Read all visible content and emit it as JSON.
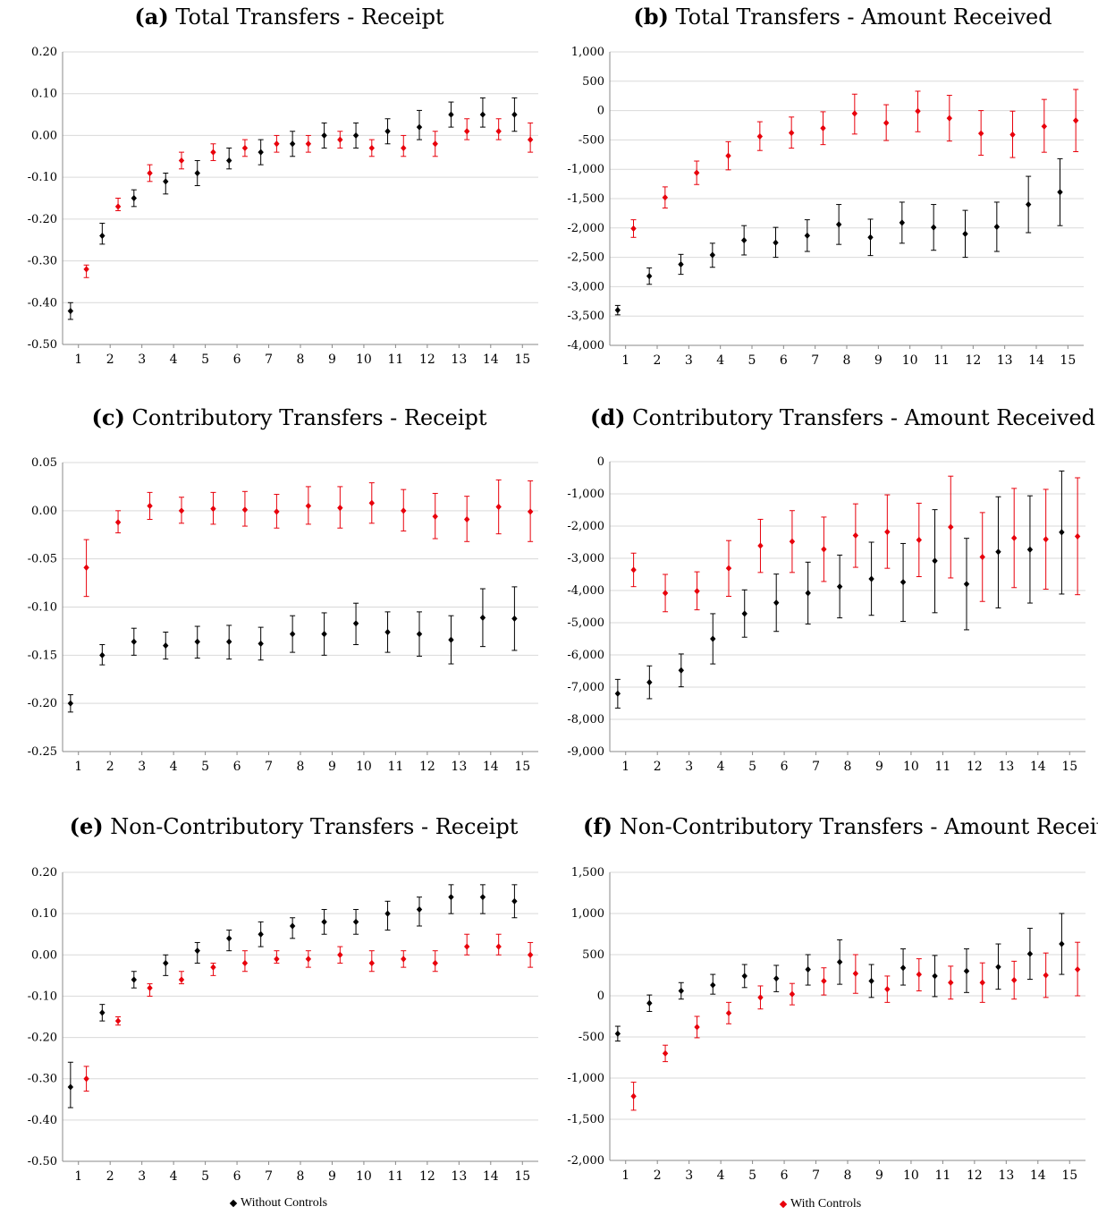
{
  "colors": {
    "without": "#000000",
    "with": "#e8000b",
    "grid": "#d9d9d9",
    "axis": "#888888"
  },
  "legend": {
    "without_label": "Without Controls",
    "with_label": "With Controls"
  },
  "chart_data": [
    {
      "id": "a",
      "type": "scatter",
      "letter": "(a)",
      "title": "Total Transfers - Receipt",
      "ylim": [
        -0.5,
        0.2
      ],
      "yticks": [
        0.2,
        0.1,
        0.0,
        -0.1,
        -0.2,
        -0.3,
        -0.4,
        -0.5
      ],
      "ytick_labels": [
        "0.20",
        "0.10",
        "0.00",
        "-0.10",
        "-0.20",
        "-0.30",
        "-0.40",
        "-0.50"
      ],
      "x": [
        1,
        2,
        3,
        4,
        5,
        6,
        7,
        8,
        9,
        10,
        11,
        12,
        13,
        14,
        15
      ],
      "series": [
        {
          "name": "Without Controls",
          "y": [
            -0.42,
            -0.24,
            -0.15,
            -0.11,
            -0.09,
            -0.06,
            -0.04,
            -0.02,
            0.0,
            0.0,
            0.01,
            0.02,
            0.05,
            0.05,
            0.05
          ],
          "lo": [
            -0.44,
            -0.26,
            -0.17,
            -0.14,
            -0.12,
            -0.08,
            -0.07,
            -0.05,
            -0.03,
            -0.03,
            -0.02,
            -0.01,
            0.02,
            0.02,
            0.01
          ],
          "hi": [
            -0.4,
            -0.21,
            -0.13,
            -0.09,
            -0.06,
            -0.03,
            -0.01,
            0.01,
            0.03,
            0.03,
            0.04,
            0.06,
            0.08,
            0.09,
            0.09
          ]
        },
        {
          "name": "With Controls",
          "y": [
            -0.32,
            -0.17,
            -0.09,
            -0.06,
            -0.04,
            -0.03,
            -0.02,
            -0.02,
            -0.01,
            -0.03,
            -0.03,
            -0.02,
            0.01,
            0.01,
            -0.01
          ],
          "lo": [
            -0.34,
            -0.18,
            -0.11,
            -0.08,
            -0.06,
            -0.05,
            -0.04,
            -0.04,
            -0.03,
            -0.05,
            -0.05,
            -0.05,
            -0.01,
            -0.01,
            -0.04
          ],
          "hi": [
            -0.31,
            -0.15,
            -0.07,
            -0.04,
            -0.02,
            -0.01,
            0.0,
            0.0,
            0.01,
            -0.01,
            0.0,
            0.01,
            0.04,
            0.04,
            0.03
          ]
        }
      ]
    },
    {
      "id": "b",
      "type": "scatter",
      "letter": "(b)",
      "title": "Total Transfers - Amount Received",
      "ylim": [
        -4000,
        1000
      ],
      "yticks": [
        1000,
        500,
        0,
        -500,
        -1000,
        -1500,
        -2000,
        -2500,
        -3000,
        -3500,
        -4000
      ],
      "ytick_labels": [
        "1,000",
        "500",
        "0",
        "-500",
        "-1,000",
        "-1,500",
        "-2,000",
        "-2,500",
        "-3,000",
        "-3,500",
        "-4,000"
      ],
      "x": [
        1,
        2,
        3,
        4,
        5,
        6,
        7,
        8,
        9,
        10,
        11,
        12,
        13,
        14,
        15
      ],
      "series": [
        {
          "name": "Without Controls",
          "y": [
            -3400,
            -2820,
            -2620,
            -2460,
            -2210,
            -2250,
            -2130,
            -1940,
            -2160,
            -1910,
            -1990,
            -2100,
            -1980,
            -1600,
            -1390
          ],
          "lo": [
            -3480,
            -2960,
            -2790,
            -2670,
            -2460,
            -2500,
            -2400,
            -2280,
            -2470,
            -2260,
            -2380,
            -2500,
            -2400,
            -2080,
            -1960
          ],
          "hi": [
            -3320,
            -2680,
            -2450,
            -2260,
            -1960,
            -1990,
            -1860,
            -1600,
            -1850,
            -1560,
            -1600,
            -1700,
            -1560,
            -1120,
            -820
          ]
        },
        {
          "name": "With Controls",
          "y": [
            -2010,
            -1480,
            -1060,
            -770,
            -440,
            -380,
            -300,
            -50,
            -210,
            -10,
            -130,
            -390,
            -410,
            -270,
            -170
          ],
          "lo": [
            -2160,
            -1660,
            -1260,
            -1010,
            -680,
            -640,
            -580,
            -400,
            -510,
            -360,
            -520,
            -760,
            -800,
            -710,
            -700
          ],
          "hi": [
            -1860,
            -1300,
            -860,
            -530,
            -190,
            -110,
            -20,
            280,
            100,
            330,
            260,
            0,
            -10,
            190,
            360
          ]
        }
      ]
    },
    {
      "id": "c",
      "type": "scatter",
      "letter": "(c)",
      "title": "Contributory Transfers - Receipt",
      "ylim": [
        -0.25,
        0.05
      ],
      "yticks": [
        0.05,
        0.0,
        -0.05,
        -0.1,
        -0.15,
        -0.2,
        -0.25
      ],
      "ytick_labels": [
        "0.05",
        "0.00",
        "-0.05",
        "-0.10",
        "-0.15",
        "-0.20",
        "-0.25"
      ],
      "x": [
        1,
        2,
        3,
        4,
        5,
        6,
        7,
        8,
        9,
        10,
        11,
        12,
        13,
        14,
        15
      ],
      "series": [
        {
          "name": "Without Controls",
          "y": [
            -0.2,
            -0.15,
            -0.136,
            -0.14,
            -0.136,
            -0.136,
            -0.138,
            -0.128,
            -0.128,
            -0.117,
            -0.126,
            -0.128,
            -0.134,
            -0.111,
            -0.112
          ],
          "lo": [
            -0.209,
            -0.16,
            -0.15,
            -0.154,
            -0.153,
            -0.154,
            -0.155,
            -0.147,
            -0.15,
            -0.139,
            -0.147,
            -0.151,
            -0.159,
            -0.141,
            -0.145
          ],
          "hi": [
            -0.191,
            -0.139,
            -0.122,
            -0.126,
            -0.12,
            -0.119,
            -0.121,
            -0.109,
            -0.106,
            -0.096,
            -0.105,
            -0.105,
            -0.109,
            -0.081,
            -0.079
          ]
        },
        {
          "name": "With Controls",
          "y": [
            -0.059,
            -0.012,
            0.005,
            0.0,
            0.002,
            0.001,
            -0.001,
            0.005,
            0.003,
            0.008,
            0.0,
            -0.006,
            -0.009,
            0.004,
            -0.001
          ],
          "lo": [
            -0.089,
            -0.023,
            -0.009,
            -0.013,
            -0.014,
            -0.016,
            -0.018,
            -0.014,
            -0.018,
            -0.013,
            -0.021,
            -0.029,
            -0.032,
            -0.024,
            -0.032
          ],
          "hi": [
            -0.03,
            0.0,
            0.019,
            0.014,
            0.019,
            0.02,
            0.017,
            0.025,
            0.025,
            0.029,
            0.022,
            0.018,
            0.015,
            0.032,
            0.031
          ]
        }
      ]
    },
    {
      "id": "d",
      "type": "scatter",
      "letter": "(d)",
      "title": "Contributory Transfers - Amount Received",
      "ylim": [
        -9000,
        0
      ],
      "yticks": [
        0,
        -1000,
        -2000,
        -3000,
        -4000,
        -5000,
        -6000,
        -7000,
        -8000,
        -9000
      ],
      "ytick_labels": [
        "0",
        "-1,000",
        "-2,000",
        "-3,000",
        "-4,000",
        "-5,000",
        "-6,000",
        "-7,000",
        "-8,000",
        "-9,000"
      ],
      "x": [
        1,
        2,
        3,
        4,
        5,
        6,
        7,
        8,
        9,
        10,
        11,
        12,
        13,
        14,
        15
      ],
      "series": [
        {
          "name": "Without Controls",
          "y": [
            -7200,
            -6850,
            -6480,
            -5500,
            -4720,
            -4380,
            -4080,
            -3880,
            -3640,
            -3740,
            -3080,
            -3800,
            -2800,
            -2730,
            -2190
          ],
          "lo": [
            -7650,
            -7360,
            -6990,
            -6280,
            -5450,
            -5270,
            -5040,
            -4850,
            -4770,
            -4960,
            -4690,
            -5220,
            -4540,
            -4390,
            -4110
          ],
          "hi": [
            -6760,
            -6340,
            -5970,
            -4720,
            -3980,
            -3490,
            -3120,
            -2900,
            -2500,
            -2540,
            -1490,
            -2380,
            -1090,
            -1060,
            -290
          ]
        },
        {
          "name": "With Controls",
          "y": [
            -3360,
            -4080,
            -4020,
            -3310,
            -2610,
            -2480,
            -2720,
            -2290,
            -2180,
            -2430,
            -2030,
            -2960,
            -2370,
            -2410,
            -2320
          ],
          "lo": [
            -3880,
            -4660,
            -4600,
            -4180,
            -3440,
            -3440,
            -3720,
            -3280,
            -3310,
            -3570,
            -3610,
            -4340,
            -3910,
            -3960,
            -4130
          ],
          "hi": [
            -2840,
            -3500,
            -3420,
            -2450,
            -1790,
            -1520,
            -1720,
            -1310,
            -1030,
            -1290,
            -450,
            -1580,
            -830,
            -860,
            -500
          ]
        }
      ]
    },
    {
      "id": "e",
      "type": "scatter",
      "letter": "(e)",
      "title": "Non-Contributory Transfers - Receipt",
      "ylim": [
        -0.5,
        0.2
      ],
      "yticks": [
        0.2,
        0.1,
        0.0,
        -0.1,
        -0.2,
        -0.3,
        -0.4,
        -0.5
      ],
      "ytick_labels": [
        "0.20",
        "0.10",
        "0.00",
        "-0.10",
        "-0.20",
        "-0.30",
        "-0.40",
        "-0.50"
      ],
      "x": [
        1,
        2,
        3,
        4,
        5,
        6,
        7,
        8,
        9,
        10,
        11,
        12,
        13,
        14,
        15
      ],
      "series": [
        {
          "name": "Without Controls",
          "y": [
            -0.32,
            -0.14,
            -0.06,
            -0.02,
            0.01,
            0.04,
            0.05,
            0.07,
            0.08,
            0.08,
            0.1,
            0.11,
            0.14,
            0.14,
            0.13
          ],
          "lo": [
            -0.37,
            -0.16,
            -0.08,
            -0.05,
            -0.02,
            0.01,
            0.02,
            0.04,
            0.05,
            0.05,
            0.06,
            0.07,
            0.1,
            0.1,
            0.09
          ],
          "hi": [
            -0.26,
            -0.12,
            -0.04,
            0.0,
            0.03,
            0.06,
            0.08,
            0.09,
            0.11,
            0.11,
            0.13,
            0.14,
            0.17,
            0.17,
            0.17
          ]
        },
        {
          "name": "With Controls",
          "y": [
            -0.3,
            -0.16,
            -0.08,
            -0.06,
            -0.03,
            -0.02,
            -0.01,
            -0.01,
            0.0,
            -0.02,
            -0.01,
            -0.02,
            0.02,
            0.02,
            0.0
          ],
          "lo": [
            -0.33,
            -0.17,
            -0.1,
            -0.07,
            -0.05,
            -0.04,
            -0.02,
            -0.03,
            -0.02,
            -0.04,
            -0.03,
            -0.04,
            0.0,
            0.0,
            -0.03
          ],
          "hi": [
            -0.27,
            -0.15,
            -0.07,
            -0.04,
            -0.02,
            0.01,
            0.01,
            0.01,
            0.02,
            0.01,
            0.01,
            0.01,
            0.05,
            0.05,
            0.03
          ]
        }
      ]
    },
    {
      "id": "f",
      "type": "scatter",
      "letter": "(f)",
      "title": "Non-Contributory Transfers - Amount Received",
      "ylim": [
        -2000,
        1500
      ],
      "yticks": [
        1500,
        1000,
        500,
        0,
        -500,
        -1000,
        -1500,
        -2000
      ],
      "ytick_labels": [
        "1,500",
        "1,000",
        "500",
        "0",
        "-500",
        "-1,000",
        "-1,500",
        "-2,000"
      ],
      "x": [
        1,
        2,
        3,
        4,
        5,
        6,
        7,
        8,
        9,
        10,
        11,
        12,
        13,
        14,
        15
      ],
      "series": [
        {
          "name": "Without Controls",
          "y": [
            -460,
            -90,
            60,
            130,
            240,
            210,
            320,
            410,
            180,
            340,
            240,
            300,
            350,
            510,
            630
          ],
          "lo": [
            -550,
            -190,
            -40,
            20,
            100,
            50,
            130,
            140,
            -20,
            130,
            -10,
            40,
            80,
            200,
            260
          ],
          "hi": [
            -370,
            10,
            160,
            260,
            380,
            370,
            500,
            680,
            380,
            570,
            490,
            570,
            630,
            820,
            1000
          ]
        },
        {
          "name": "With Controls",
          "y": [
            -1220,
            -700,
            -380,
            -210,
            -20,
            20,
            180,
            270,
            80,
            260,
            160,
            160,
            190,
            250,
            320
          ],
          "lo": [
            -1390,
            -800,
            -510,
            -340,
            -160,
            -110,
            10,
            30,
            -80,
            60,
            -40,
            -80,
            -40,
            -20,
            0
          ],
          "hi": [
            -1050,
            -600,
            -250,
            -80,
            120,
            150,
            340,
            500,
            240,
            450,
            360,
            400,
            420,
            520,
            650
          ]
        }
      ]
    }
  ]
}
